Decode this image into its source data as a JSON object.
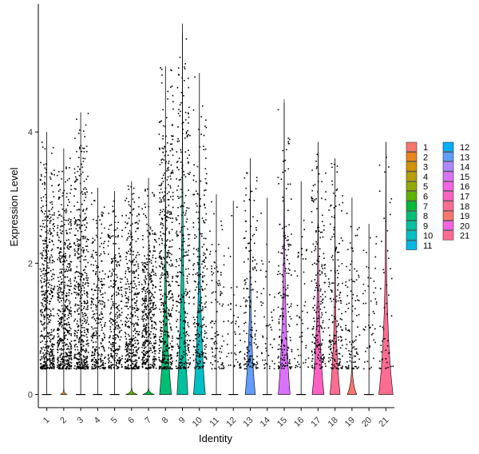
{
  "chart_data": {
    "type": "violin",
    "xlabel": "Identity",
    "ylabel": "Expression Level",
    "ylim": [
      -0.2,
      5.95
    ],
    "yticks": [
      0,
      2,
      4
    ],
    "categories": [
      "1",
      "2",
      "3",
      "4",
      "5",
      "6",
      "7",
      "8",
      "9",
      "10",
      "11",
      "12",
      "13",
      "14",
      "15",
      "16",
      "17",
      "18",
      "19",
      "20",
      "21"
    ],
    "colors": [
      "#F8766D",
      "#E8851E",
      "#D39200",
      "#B79F00",
      "#93AA00",
      "#5EB300",
      "#00BA38",
      "#00BF74",
      "#00C19F",
      "#00BFC4",
      "#00B9E3",
      "#00ADFA",
      "#619CFF",
      "#AE87FF",
      "#DB72FB",
      "#F564E3",
      "#FF61C3",
      "#FF6C91",
      "#F8766D",
      "#F564E3",
      "#FF6C91"
    ],
    "max_values": [
      4.0,
      3.75,
      4.3,
      3.15,
      3.1,
      3.25,
      3.3,
      5.0,
      5.65,
      4.9,
      3.05,
      2.95,
      3.6,
      3.0,
      4.45,
      3.25,
      3.85,
      3.6,
      3.0,
      2.6,
      3.85
    ],
    "point_density": [
      0.95,
      1.0,
      0.95,
      0.55,
      0.55,
      0.75,
      0.85,
      0.9,
      0.6,
      0.5,
      0.2,
      0.1,
      0.3,
      0.1,
      0.35,
      0.1,
      0.4,
      0.35,
      0.2,
      0.1,
      0.1
    ],
    "violin_heights": [
      0.0,
      0.1,
      0.0,
      0.0,
      0.0,
      0.12,
      0.12,
      3.8,
      5.5,
      4.3,
      0.0,
      0.0,
      3.2,
      0.0,
      4.5,
      0.0,
      3.7,
      3.0,
      0.7,
      0.0,
      3.85
    ],
    "violin_widths": [
      0.0,
      0.2,
      0.0,
      0.0,
      0.0,
      0.35,
      0.35,
      0.35,
      0.32,
      0.35,
      0.0,
      0.0,
      0.3,
      0.0,
      0.35,
      0.0,
      0.35,
      0.3,
      0.28,
      0.0,
      0.42
    ],
    "legend": {
      "columns": 2,
      "entries": [
        "1",
        "2",
        "3",
        "4",
        "5",
        "6",
        "7",
        "8",
        "9",
        "10",
        "11",
        "12",
        "13",
        "14",
        "15",
        "16",
        "17",
        "18",
        "19",
        "20",
        "21"
      ]
    }
  }
}
